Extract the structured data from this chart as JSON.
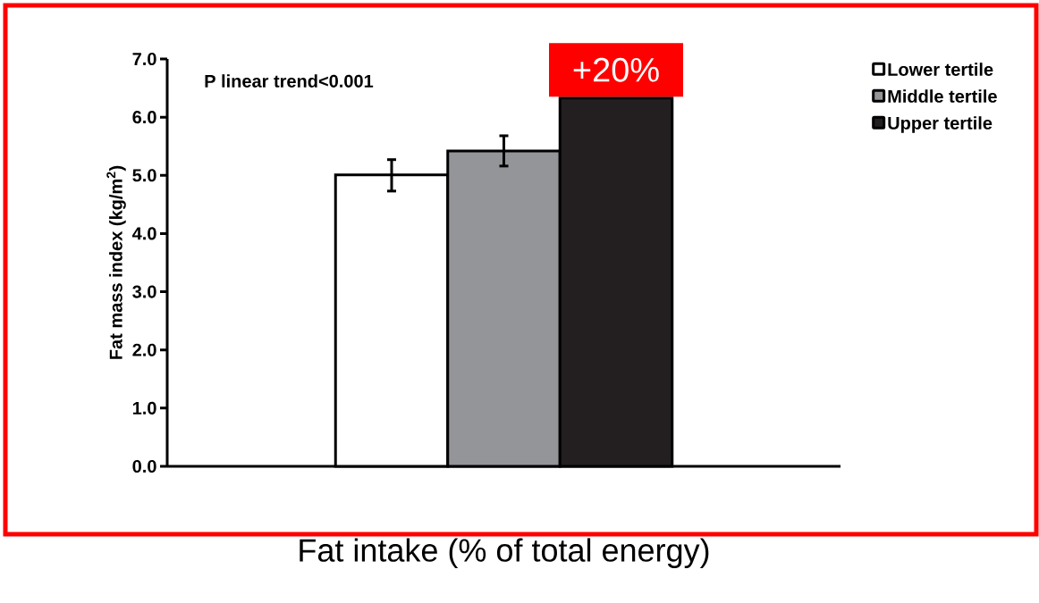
{
  "chart_data": {
    "type": "bar",
    "xlabel": "Fat intake (% of total energy)",
    "ylabel": "Fat mass index (kg/m$^{2}$)",
    "categories": [
      null
    ],
    "series": [
      {
        "name": "Lower tertile",
        "color": "#ffffff",
        "values": [
          5.01
        ],
        "errors": [
          [
            4.73,
            5.27
          ]
        ]
      },
      {
        "name": "Middle tertile",
        "color": "#939598",
        "values": [
          5.42
        ],
        "errors": [
          [
            5.16,
            5.68
          ]
        ]
      },
      {
        "name": "Upper tertile",
        "color": "#231f20",
        "values": [
          6.33
        ],
        "errors": [
          null
        ]
      }
    ],
    "ylim": [
      0,
      7
    ],
    "yticks": [
      {
        "value": 0,
        "label": "0.0"
      },
      {
        "value": 1,
        "label": "1.0"
      },
      {
        "value": 2,
        "label": "2.0"
      },
      {
        "value": 3,
        "label": "3.0"
      },
      {
        "value": 4,
        "label": "4.0"
      },
      {
        "value": 5,
        "label": "5.0"
      },
      {
        "value": 6,
        "label": "6.0"
      },
      {
        "value": 7,
        "label": "7.0"
      }
    ],
    "annotations": [
      "P linear trend<0.001",
      "+20%"
    ],
    "legend": "top right",
    "grid": false
  }
}
